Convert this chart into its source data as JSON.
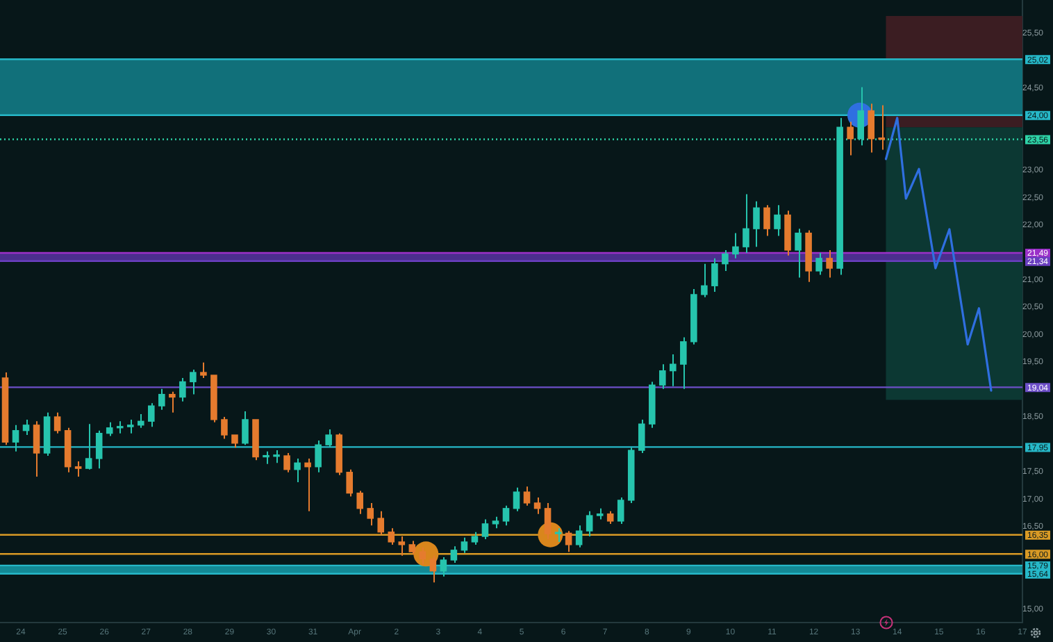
{
  "chart_data": {
    "type": "candlestick",
    "xlim": [
      "--03-23T12:00",
      "--04-17T00:00"
    ],
    "ylim": [
      14.75,
      26.1
    ],
    "xticks": [
      {
        "value": "--03-24",
        "label": "24"
      },
      {
        "value": "--03-25",
        "label": "25"
      },
      {
        "value": "--03-26",
        "label": "26"
      },
      {
        "value": "--03-27",
        "label": "27"
      },
      {
        "value": "--03-28",
        "label": "28"
      },
      {
        "value": "--03-29",
        "label": "29"
      },
      {
        "value": "--03-30",
        "label": "30"
      },
      {
        "value": "--03-31",
        "label": "31"
      },
      {
        "value": "--04-01",
        "label": "Apr"
      },
      {
        "value": "--04-02",
        "label": "2"
      },
      {
        "value": "--04-03",
        "label": "3"
      },
      {
        "value": "--04-04",
        "label": "4"
      },
      {
        "value": "--04-05",
        "label": "5"
      },
      {
        "value": "--04-06",
        "label": "6"
      },
      {
        "value": "--04-07",
        "label": "7"
      },
      {
        "value": "--04-08",
        "label": "8"
      },
      {
        "value": "--04-09",
        "label": "9"
      },
      {
        "value": "--04-10",
        "label": "10"
      },
      {
        "value": "--04-11",
        "label": "11"
      },
      {
        "value": "--04-12",
        "label": "12"
      },
      {
        "value": "--04-13",
        "label": "13"
      },
      {
        "value": "--04-14",
        "label": "14"
      },
      {
        "value": "--04-15",
        "label": "15"
      },
      {
        "value": "--04-16",
        "label": "16"
      },
      {
        "value": "--04-17",
        "label": "17"
      }
    ],
    "yticks": [
      {
        "value": 15,
        "label": "15,00"
      },
      {
        "value": 16.5,
        "label": "16,50"
      },
      {
        "value": 17,
        "label": "17,00"
      },
      {
        "value": 17.5,
        "label": "17,50"
      },
      {
        "value": 18.5,
        "label": "18,50"
      },
      {
        "value": 19.5,
        "label": "19,50"
      },
      {
        "value": 20,
        "label": "20,00"
      },
      {
        "value": 20.5,
        "label": "20,50"
      },
      {
        "value": 21,
        "label": "21,00"
      },
      {
        "value": 22,
        "label": "22,00"
      },
      {
        "value": 22.5,
        "label": "22,50"
      },
      {
        "value": 23,
        "label": "23,00"
      },
      {
        "value": 24.5,
        "label": "24,50"
      },
      {
        "value": 25.5,
        "label": "25,50"
      }
    ],
    "bands": [
      {
        "axis": "y",
        "from": 23.78,
        "to": 25.81,
        "color": "#3b1d22"
      },
      {
        "axis": "y",
        "from": 18.81,
        "to": 23.78,
        "color": "#0c3833"
      },
      {
        "axis": "y",
        "from": 24.0,
        "to": 25.02,
        "color": "#11707a"
      },
      {
        "axis": "y",
        "from": 21.34,
        "to": 21.49,
        "color": "#4b2e8e"
      },
      {
        "axis": "y",
        "from": 15.64,
        "to": 15.79,
        "color": "#138995"
      }
    ],
    "ref_lines": [
      {
        "axis": "y",
        "value": 25.02,
        "label": "25,02",
        "color": "#26b8c8"
      },
      {
        "axis": "y",
        "value": 24.0,
        "label": "24,00",
        "color": "#26b8c8"
      },
      {
        "axis": "y",
        "value": 23.56,
        "label": "23,56",
        "color": "#2ed3a7",
        "line_style": "dotted"
      },
      {
        "axis": "y",
        "value": 21.49,
        "label": "21,49",
        "color": "#9b30c8"
      },
      {
        "axis": "y",
        "value": 21.34,
        "label": "21,34",
        "color": "#6a3fc0"
      },
      {
        "axis": "y",
        "value": 19.04,
        "label": "19,04",
        "color": "#6d4fc8"
      },
      {
        "axis": "y",
        "value": 17.95,
        "label": "17,95",
        "color": "#26b8c8"
      },
      {
        "axis": "y",
        "value": 16.35,
        "label": "16,35",
        "color": "#d99a25"
      },
      {
        "axis": "y",
        "value": 16.0,
        "label": "16,00",
        "color": "#d99a25"
      },
      {
        "axis": "y",
        "value": 15.79,
        "label": "15,79",
        "color": "#26b8c8"
      },
      {
        "axis": "y",
        "value": 15.64,
        "label": "15,64",
        "color": "#26b8c8"
      }
    ],
    "series": [
      {
        "x": [
          "--03-23T15:00",
          "--03-23T21:00",
          "--03-24T03:00",
          "--03-24T09:00",
          "--03-24T15:00",
          "--03-24T21:00",
          "--03-25T03:00",
          "--03-25T09:00",
          "--03-25T15:00",
          "--03-25T21:00",
          "--03-26T03:00",
          "--03-26T09:00",
          "--03-26T15:00",
          "--03-26T21:00",
          "--03-27T03:00",
          "--03-27T09:00",
          "--03-27T15:00",
          "--03-27T21:00",
          "--03-28T03:00",
          "--03-28T09:00",
          "--03-28T15:00",
          "--03-28T21:00",
          "--03-29T03:00",
          "--03-29T09:00",
          "--03-29T15:00",
          "--03-29T21:00",
          "--03-30T03:00",
          "--03-30T09:00",
          "--03-30T15:00",
          "--03-30T21:00",
          "--03-31T03:00",
          "--03-31T09:00",
          "--03-31T15:00",
          "--03-31T21:00",
          "--04-01T03:00",
          "--04-01T09:00",
          "--04-01T15:00",
          "--04-01T21:00",
          "--04-02T03:00",
          "--04-02T09:00",
          "--04-02T15:00",
          "--04-02T21:00",
          "--04-03T03:00",
          "--04-03T09:00",
          "--04-03T15:00",
          "--04-03T21:00",
          "--04-04T03:00",
          "--04-04T09:00",
          "--04-04T15:00",
          "--04-04T21:00",
          "--04-05T03:00",
          "--04-05T09:00",
          "--04-05T15:00",
          "--04-05T21:00",
          "--04-06T03:00",
          "--04-06T09:00",
          "--04-06T15:00",
          "--04-06T21:00",
          "--04-07T03:00",
          "--04-07T09:00",
          "--04-07T15:00",
          "--04-07T21:00",
          "--04-08T03:00",
          "--04-08T09:00",
          "--04-08T15:00",
          "--04-08T21:00",
          "--04-09T03:00",
          "--04-09T09:00",
          "--04-09T15:00",
          "--04-09T21:00",
          "--04-10T03:00",
          "--04-10T09:00",
          "--04-10T15:00",
          "--04-10T21:00",
          "--04-11T03:00",
          "--04-11T09:00",
          "--04-11T15:00",
          "--04-11T21:00",
          "--04-12T03:00",
          "--04-12T09:00",
          "--04-12T15:00",
          "--04-12T21:00",
          "--04-13T03:00",
          "--04-13T09:00",
          "--04-13T15:00"
        ],
        "ohlc": [
          [
            19.21,
            19.31,
            17.99,
            18.04
          ],
          [
            18.04,
            18.35,
            17.87,
            18.25
          ],
          [
            18.25,
            18.45,
            18.17,
            18.35
          ],
          [
            18.35,
            18.42,
            17.41,
            17.84
          ],
          [
            17.84,
            18.58,
            17.79,
            18.5
          ],
          [
            18.5,
            18.58,
            18.2,
            18.25
          ],
          [
            18.25,
            18.3,
            17.49,
            17.59
          ],
          [
            17.59,
            17.69,
            17.41,
            17.56
          ],
          [
            17.56,
            18.37,
            17.54,
            17.74
          ],
          [
            17.74,
            18.25,
            17.56,
            18.2
          ],
          [
            18.2,
            18.4,
            18.15,
            18.3
          ],
          [
            18.3,
            18.42,
            18.2,
            18.32
          ],
          [
            18.32,
            18.45,
            18.2,
            18.35
          ],
          [
            18.35,
            18.55,
            18.3,
            18.42
          ],
          [
            18.42,
            18.75,
            18.32,
            18.7
          ],
          [
            18.7,
            19.01,
            18.63,
            18.91
          ],
          [
            18.91,
            18.96,
            18.58,
            18.86
          ],
          [
            18.86,
            19.21,
            18.78,
            19.14
          ],
          [
            19.14,
            19.36,
            18.91,
            19.31
          ],
          [
            19.31,
            19.49,
            19.21,
            19.26
          ],
          [
            19.26,
            19.26,
            18.4,
            18.45
          ],
          [
            18.45,
            18.5,
            18.1,
            18.17
          ],
          [
            18.17,
            18.17,
            17.94,
            18.02
          ],
          [
            18.02,
            18.6,
            17.99,
            18.45
          ],
          [
            18.45,
            18.45,
            17.71,
            17.77
          ],
          [
            17.77,
            17.87,
            17.64,
            17.78
          ],
          [
            17.78,
            17.89,
            17.66,
            17.79
          ],
          [
            17.79,
            17.84,
            17.49,
            17.54
          ],
          [
            17.54,
            17.74,
            17.31,
            17.66
          ],
          [
            17.66,
            17.74,
            16.78,
            17.59
          ],
          [
            17.59,
            18.07,
            17.49,
            17.99
          ],
          [
            17.99,
            18.27,
            17.95,
            18.17
          ],
          [
            18.17,
            18.2,
            17.44,
            17.49
          ],
          [
            17.49,
            17.54,
            17.05,
            17.11
          ],
          [
            17.11,
            17.15,
            16.73,
            16.83
          ],
          [
            16.83,
            16.93,
            16.52,
            16.65
          ],
          [
            16.65,
            16.78,
            16.35,
            16.4
          ],
          [
            16.4,
            16.47,
            16.17,
            16.22
          ],
          [
            16.22,
            16.32,
            15.97,
            16.17
          ],
          [
            16.17,
            16.24,
            15.99,
            16.04
          ],
          [
            16.04,
            16.12,
            15.81,
            15.91
          ],
          [
            15.91,
            15.97,
            15.48,
            15.69
          ],
          [
            15.69,
            15.94,
            15.59,
            15.89
          ],
          [
            15.89,
            16.14,
            15.84,
            16.07
          ],
          [
            16.07,
            16.3,
            16.02,
            16.22
          ],
          [
            16.22,
            16.4,
            16.17,
            16.32
          ],
          [
            16.32,
            16.63,
            16.27,
            16.55
          ],
          [
            16.55,
            16.68,
            16.47,
            16.6
          ],
          [
            16.6,
            16.88,
            16.52,
            16.83
          ],
          [
            16.83,
            17.21,
            16.78,
            17.13
          ],
          [
            17.13,
            17.23,
            16.88,
            16.93
          ],
          [
            16.93,
            17.03,
            16.73,
            16.83
          ],
          [
            16.83,
            16.93,
            16.27,
            16.37
          ],
          [
            16.37,
            16.47,
            16.22,
            16.38
          ],
          [
            16.38,
            16.42,
            16.04,
            16.17
          ],
          [
            16.17,
            16.52,
            16.12,
            16.42
          ],
          [
            16.42,
            16.78,
            16.32,
            16.7
          ],
          [
            16.7,
            16.83,
            16.63,
            16.73
          ],
          [
            16.73,
            16.78,
            16.55,
            16.6
          ],
          [
            16.6,
            17.03,
            16.55,
            16.98
          ],
          [
            16.98,
            17.94,
            16.93,
            17.89
          ],
          [
            17.89,
            18.45,
            17.84,
            18.37
          ],
          [
            18.37,
            19.14,
            18.3,
            19.08
          ],
          [
            19.08,
            19.46,
            19.01,
            19.34
          ],
          [
            19.34,
            19.64,
            19.06,
            19.46
          ],
          [
            19.46,
            19.95,
            19.01,
            19.87
          ],
          [
            19.87,
            20.83,
            19.82,
            20.73
          ],
          [
            20.73,
            21.29,
            20.68,
            20.89
          ],
          [
            20.89,
            21.39,
            20.78,
            21.29
          ],
          [
            21.29,
            21.54,
            21.16,
            21.47
          ],
          [
            21.47,
            21.85,
            21.39,
            21.6
          ],
          [
            21.6,
            22.56,
            21.49,
            21.93
          ],
          [
            21.93,
            22.43,
            21.6,
            22.31
          ],
          [
            22.31,
            22.36,
            21.8,
            21.93
          ],
          [
            21.93,
            22.36,
            21.8,
            22.18
          ],
          [
            22.18,
            22.26,
            21.44,
            21.54
          ],
          [
            21.54,
            21.93,
            21.04,
            21.85
          ],
          [
            21.85,
            21.9,
            20.96,
            21.16
          ],
          [
            21.16,
            21.49,
            21.09,
            21.39
          ],
          [
            21.39,
            21.54,
            21.04,
            21.21
          ],
          [
            21.21,
            23.95,
            21.09,
            23.78
          ],
          [
            23.78,
            23.88,
            23.27,
            23.57
          ],
          [
            23.57,
            24.51,
            23.45,
            24.08
          ],
          [
            24.08,
            24.21,
            23.32,
            23.57
          ],
          [
            23.57,
            24.18,
            23.37,
            23.56
          ]
        ],
        "colors": [
          "#e57b2e",
          "#26c4ad",
          "#26c4ad",
          "#e57b2e",
          "#26c4ad",
          "#e57b2e",
          "#e57b2e",
          "#e57b2e",
          "#26c4ad",
          "#26c4ad",
          "#26c4ad",
          "#26c4ad",
          "#26c4ad",
          "#26c4ad",
          "#26c4ad",
          "#26c4ad",
          "#e57b2e",
          "#26c4ad",
          "#26c4ad",
          "#e57b2e",
          "#e57b2e",
          "#e57b2e",
          "#e57b2e",
          "#26c4ad",
          "#e57b2e",
          "#26c4ad",
          "#26c4ad",
          "#e57b2e",
          "#26c4ad",
          "#e57b2e",
          "#26c4ad",
          "#26c4ad",
          "#e57b2e",
          "#e57b2e",
          "#e57b2e",
          "#e57b2e",
          "#e57b2e",
          "#e57b2e",
          "#e57b2e",
          "#e57b2e",
          "#e57b2e",
          "#e57b2e",
          "#26c4ad",
          "#26c4ad",
          "#26c4ad",
          "#26c4ad",
          "#26c4ad",
          "#26c4ad",
          "#26c4ad",
          "#26c4ad",
          "#e57b2e",
          "#e57b2e",
          "#e57b2e",
          "#26c4ad",
          "#e57b2e",
          "#26c4ad",
          "#26c4ad",
          "#26c4ad",
          "#e57b2e",
          "#26c4ad",
          "#26c4ad",
          "#26c4ad",
          "#26c4ad",
          "#26c4ad",
          "#26c4ad",
          "#26c4ad",
          "#26c4ad",
          "#26c4ad",
          "#26c4ad",
          "#26c4ad",
          "#26c4ad",
          "#26c4ad",
          "#26c4ad",
          "#e57b2e",
          "#26c4ad",
          "#e57b2e",
          "#26c4ad",
          "#e57b2e",
          "#26c4ad",
          "#e57b2e",
          "#26c4ad",
          "#e57b2e",
          "#26c4ad",
          "#e57b2e",
          "#e57b2e"
        ]
      },
      {
        "type": "line",
        "color": "#2f6fe0",
        "marker": "none",
        "x": [
          "--04-13T17:30",
          "--04-14T00:00",
          "--04-14T05:00",
          "--04-14T12:30",
          "--04-14T22:00",
          "--04-15T06:00",
          "--04-15T16:30",
          "--04-15T23:00",
          "--04-16T06:00"
        ],
        "values": [
          23.2,
          23.95,
          22.48,
          23.02,
          21.21,
          21.92,
          19.82,
          20.48,
          18.98
        ]
      },
      {
        "type": "scatter",
        "marker": "circle",
        "x": [
          "--04-02T17:00",
          "--04-05T16:30",
          "--04-13T02:30"
        ],
        "values": [
          16.0,
          16.35,
          24.0
        ],
        "colors": [
          "#d9861c",
          "#d9861c",
          "#2f6fe0"
        ]
      }
    ]
  }
}
